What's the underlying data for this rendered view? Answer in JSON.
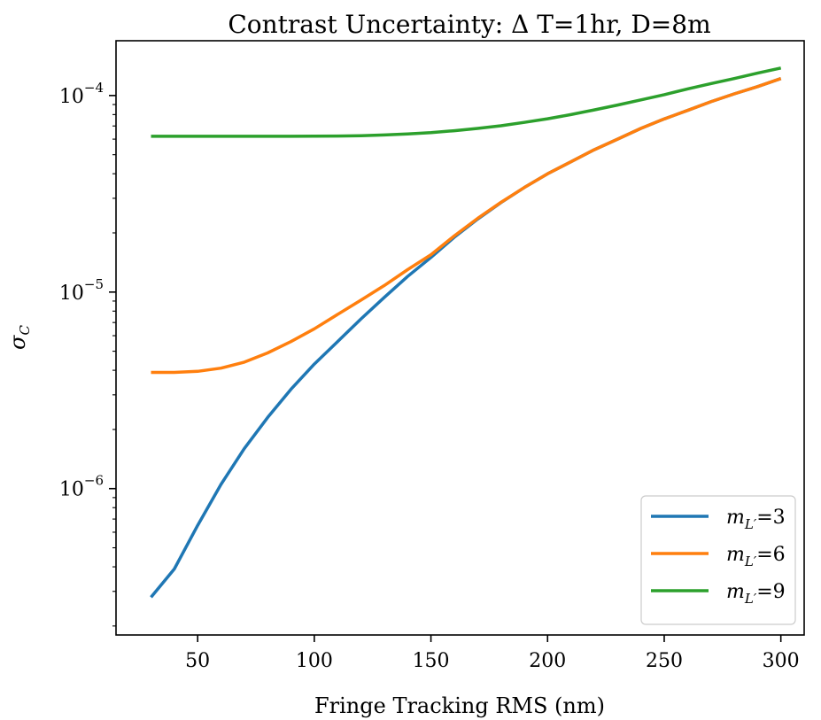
{
  "chart_data": {
    "type": "line",
    "title": "Contrast Uncertainty: Δ T=1hr, D=8m",
    "xlabel": "Fringe Tracking RMS (nm)",
    "ylabel": "σ_C",
    "ylabel_main": "σ",
    "ylabel_sub": "C",
    "xscale": "linear",
    "yscale": "log",
    "xlim": [
      15,
      310
    ],
    "ylim": [
      1.8e-07,
      0.00019
    ],
    "xticks": [
      50,
      100,
      150,
      200,
      250,
      300
    ],
    "xtick_labels": [
      "50",
      "100",
      "150",
      "200",
      "250",
      "300"
    ],
    "yticks": [
      1e-06,
      1e-05,
      0.0001
    ],
    "ytick_labels": [
      {
        "base": "10",
        "exp": "−6"
      },
      {
        "base": "10",
        "exp": "−5"
      },
      {
        "base": "10",
        "exp": "−4"
      }
    ],
    "grid": false,
    "legend_position": "lower right",
    "series": [
      {
        "name": "m_L′=3",
        "label_var": "m",
        "label_sub": "L′",
        "label_val": "=3",
        "color": "#1f77b4",
        "x": [
          30,
          40,
          50,
          60,
          70,
          80,
          90,
          100,
          110,
          120,
          130,
          140,
          150,
          160,
          170,
          180,
          190,
          200,
          210,
          220,
          230,
          240,
          250,
          260,
          270,
          280,
          290,
          300
        ],
        "y": [
          2.8e-07,
          3.9e-07,
          6.5e-07,
          1.05e-06,
          1.6e-06,
          2.3e-06,
          3.2e-06,
          4.3e-06,
          5.6e-06,
          7.3e-06,
          9.4e-06,
          1.2e-05,
          1.5e-05,
          1.9e-05,
          2.35e-05,
          2.85e-05,
          3.4e-05,
          4e-05,
          4.6e-05,
          5.3e-05,
          6e-05,
          6.8e-05,
          7.6e-05,
          8.4e-05,
          9.3e-05,
          0.000102,
          0.000111,
          0.000122
        ]
      },
      {
        "name": "m_L′=6",
        "label_var": "m",
        "label_sub": "L′",
        "label_val": "=6",
        "color": "#ff7f0e",
        "x": [
          30,
          40,
          50,
          60,
          70,
          80,
          90,
          100,
          110,
          120,
          130,
          140,
          150,
          160,
          170,
          180,
          190,
          200,
          210,
          220,
          230,
          240,
          250,
          260,
          270,
          280,
          290,
          300
        ],
        "y": [
          3.9e-06,
          3.9e-06,
          3.95e-06,
          4.1e-06,
          4.4e-06,
          4.9e-06,
          5.6e-06,
          6.5e-06,
          7.7e-06,
          9.1e-06,
          1.08e-05,
          1.3e-05,
          1.55e-05,
          1.93e-05,
          2.37e-05,
          2.86e-05,
          3.4e-05,
          4e-05,
          4.6e-05,
          5.3e-05,
          6e-05,
          6.8e-05,
          7.6e-05,
          8.4e-05,
          9.3e-05,
          0.000102,
          0.000111,
          0.000122
        ]
      },
      {
        "name": "m_L′=9",
        "label_var": "m",
        "label_sub": "L′",
        "label_val": "=9",
        "color": "#2ca02c",
        "x": [
          30,
          40,
          50,
          60,
          70,
          80,
          90,
          100,
          110,
          120,
          130,
          140,
          150,
          160,
          170,
          180,
          190,
          200,
          210,
          220,
          230,
          240,
          250,
          260,
          270,
          280,
          290,
          300
        ],
        "y": [
          6.2e-05,
          6.2e-05,
          6.2e-05,
          6.2e-05,
          6.2e-05,
          6.2e-05,
          6.2e-05,
          6.21e-05,
          6.22e-05,
          6.25e-05,
          6.3e-05,
          6.38e-05,
          6.48e-05,
          6.62e-05,
          6.8e-05,
          7.02e-05,
          7.3e-05,
          7.62e-05,
          8e-05,
          8.45e-05,
          8.95e-05,
          9.5e-05,
          0.000101,
          0.000108,
          0.000115,
          0.000122,
          0.00013,
          0.000138
        ]
      }
    ]
  }
}
